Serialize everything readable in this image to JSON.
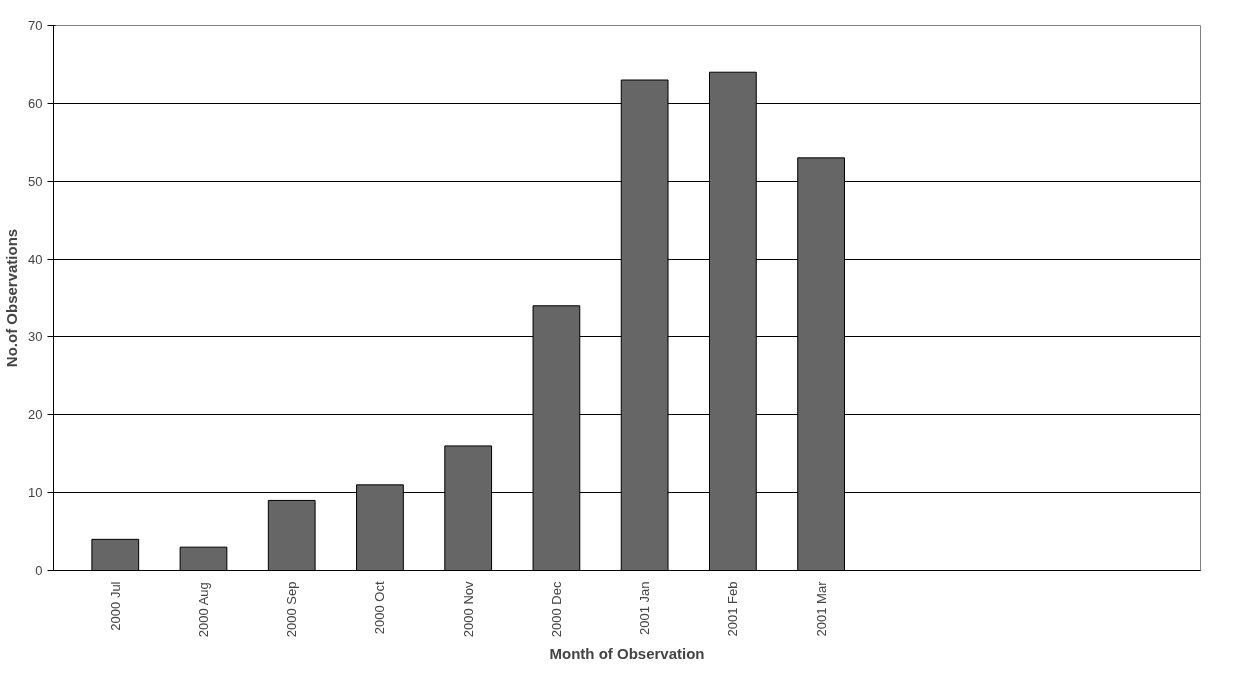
{
  "chart_data": {
    "type": "bar",
    "xlabel": "Month of Observation",
    "ylabel": "No.of Observations",
    "categories": [
      "2000 Jul",
      "2000 Aug",
      "2000 Sep",
      "2000 Oct",
      "2000 Nov",
      "2000 Dec",
      "2001 Jan",
      "2001 Feb",
      "2001 Mar"
    ],
    "values": [
      4,
      3,
      9,
      11,
      16,
      34,
      63,
      64,
      53
    ],
    "color": "#666666",
    "ylim": [
      0,
      70
    ],
    "yticks": [
      0,
      10,
      20,
      30,
      40,
      50,
      60,
      70
    ],
    "grid": "y"
  }
}
